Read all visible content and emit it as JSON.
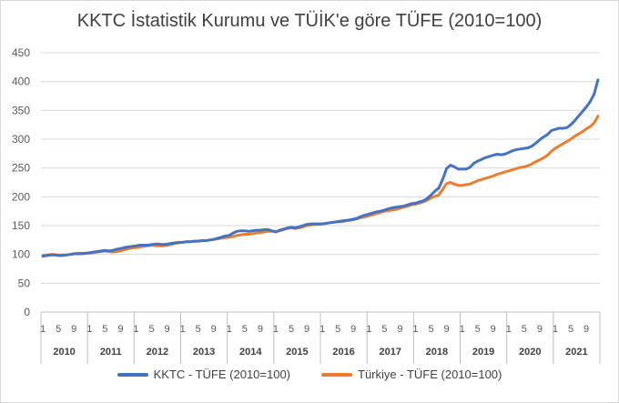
{
  "chart_data": {
    "type": "line",
    "title": "KKTC İstatistik Kurumu ve TÜİK'e göre TÜFE (2010=100)",
    "ylim": [
      0,
      450
    ],
    "yticks": [
      0,
      50,
      100,
      150,
      200,
      250,
      300,
      350,
      400,
      450
    ],
    "grid": true,
    "legend_position": "bottom",
    "month_tick_labels": [
      "1",
      "5",
      "9"
    ],
    "years": [
      "2010",
      "2011",
      "2012",
      "2013",
      "2014",
      "2015",
      "2016",
      "2017",
      "2018",
      "2019",
      "2020",
      "2021"
    ],
    "x_start": "2010-01",
    "x_end": "2021-12",
    "series": [
      {
        "name": "KKTC - TÜFE (2010=100)",
        "color": "#4472c4",
        "values": [
          97,
          98,
          99,
          99,
          98,
          98,
          99,
          100,
          101,
          101,
          101,
          102,
          103,
          104,
          105,
          106,
          107,
          106,
          107,
          109,
          110,
          112,
          113,
          114,
          115,
          116,
          116,
          116,
          117,
          118,
          118,
          117,
          118,
          119,
          120,
          121,
          121,
          122,
          122,
          123,
          123,
          124,
          124,
          125,
          126,
          128,
          130,
          132,
          133,
          137,
          140,
          141,
          141,
          140,
          141,
          142,
          142,
          143,
          143,
          141,
          139,
          142,
          144,
          146,
          147,
          146,
          148,
          150,
          152,
          153,
          153,
          153,
          153,
          154,
          155,
          156,
          157,
          158,
          159,
          160,
          161,
          163,
          166,
          168,
          170,
          172,
          174,
          175,
          177,
          179,
          181,
          182,
          183,
          184,
          186,
          188,
          189,
          191,
          193,
          197,
          203,
          210,
          215,
          230,
          249,
          255,
          252,
          248,
          248,
          248,
          251,
          258,
          262,
          265,
          268,
          270,
          272,
          274,
          273,
          274,
          277,
          280,
          282,
          283,
          284,
          285,
          288,
          293,
          299,
          304,
          308,
          315,
          317,
          319,
          319,
          320,
          325,
          332,
          340,
          348,
          356,
          365,
          378,
          403
        ]
      },
      {
        "name": "Türkiye - TÜFE (2010=100)",
        "color": "#ed7d31",
        "values": [
          98,
          99,
          100,
          100,
          99,
          99,
          99,
          100,
          101,
          102,
          102,
          102,
          102,
          103,
          104,
          105,
          106,
          105,
          104,
          105,
          106,
          108,
          110,
          111,
          112,
          113,
          114,
          115,
          116,
          115,
          115,
          115,
          116,
          117,
          119,
          120,
          121,
          122,
          122,
          123,
          123,
          124,
          124,
          125,
          126,
          127,
          128,
          129,
          130,
          131,
          133,
          134,
          135,
          135,
          136,
          137,
          138,
          139,
          140,
          140,
          140,
          141,
          143,
          145,
          146,
          145,
          146,
          148,
          150,
          151,
          152,
          152,
          153,
          154,
          155,
          156,
          157,
          157,
          158,
          159,
          160,
          162,
          164,
          165,
          167,
          169,
          171,
          173,
          175,
          176,
          177,
          178,
          180,
          182,
          184,
          186,
          187,
          189,
          191,
          194,
          198,
          201,
          203,
          213,
          223,
          225,
          222,
          220,
          220,
          221,
          222,
          225,
          228,
          230,
          232,
          234,
          236,
          239,
          241,
          243,
          245,
          247,
          249,
          251,
          252,
          254,
          257,
          261,
          264,
          268,
          272,
          279,
          284,
          288,
          292,
          296,
          300,
          305,
          309,
          313,
          318,
          322,
          328,
          340
        ]
      }
    ]
  }
}
